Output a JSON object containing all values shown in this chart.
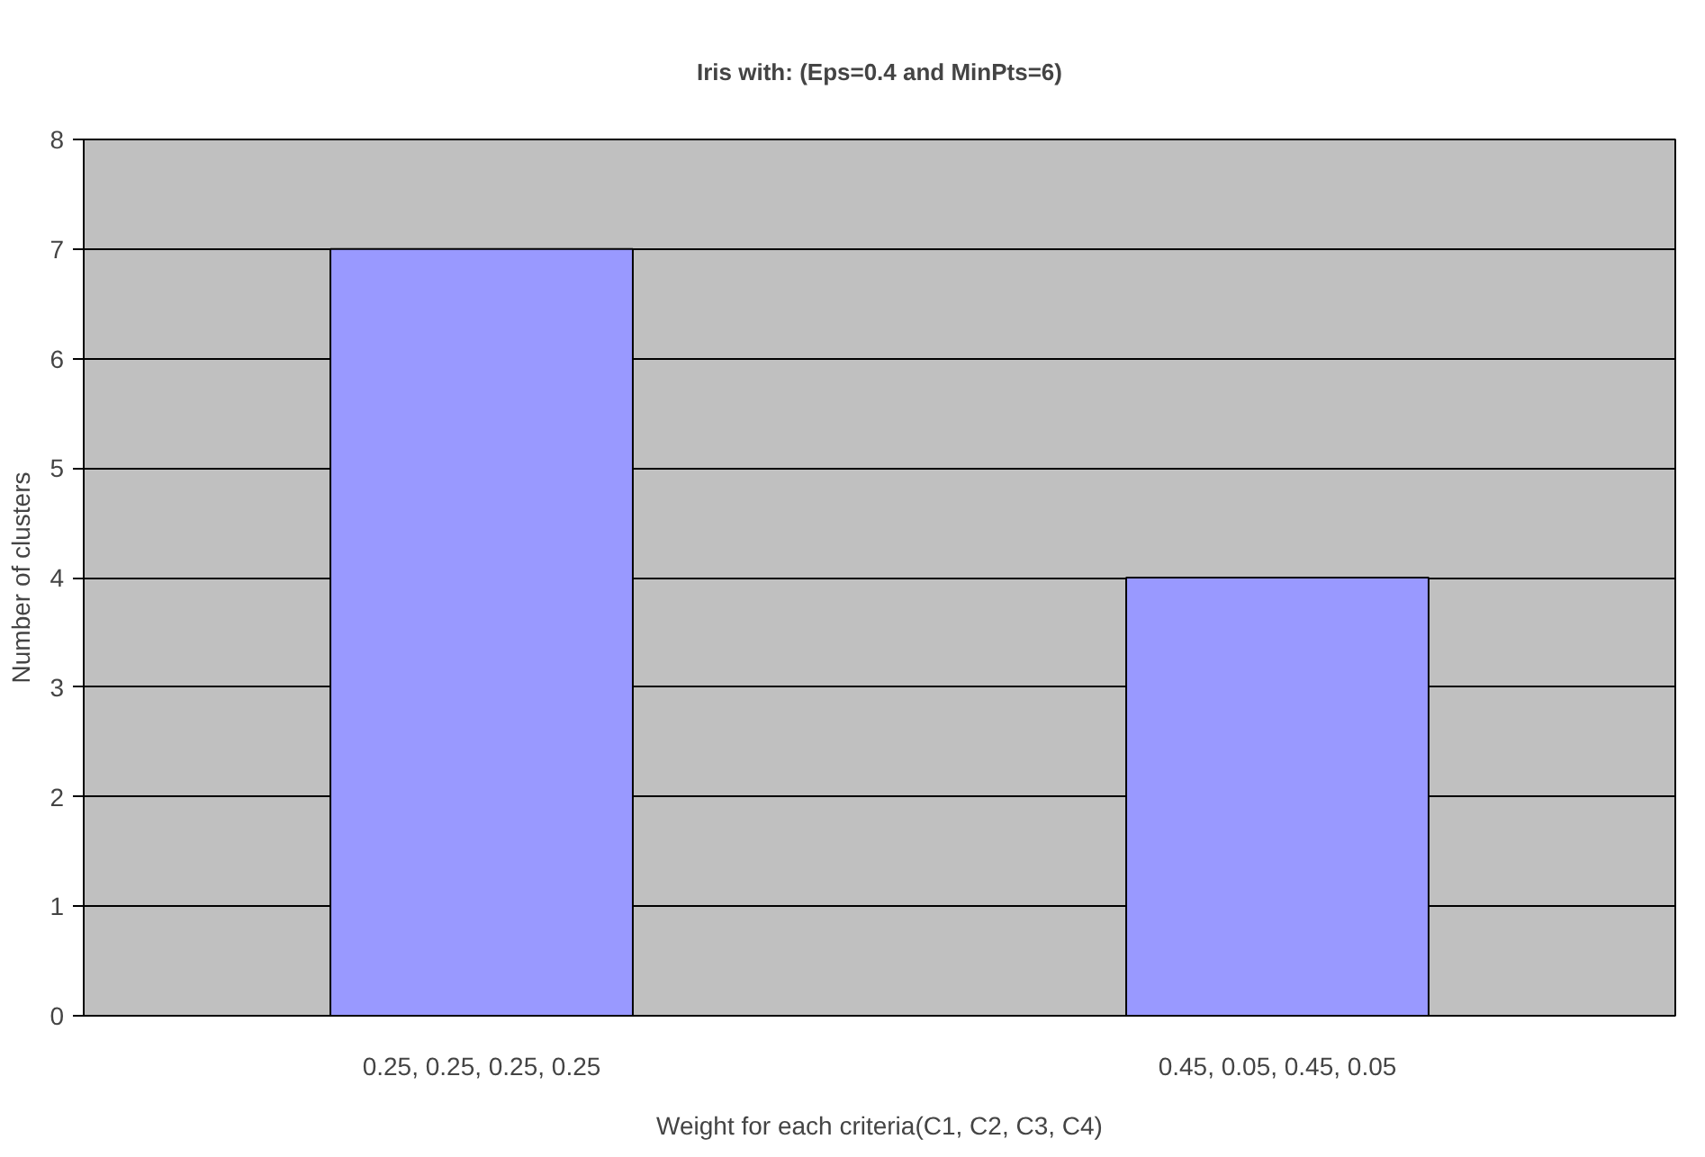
{
  "chart_data": {
    "type": "bar",
    "title": "Iris with: (Eps=0.4 and MinPts=6)",
    "xlabel": "Weight for each criteria(C1, C2, C3, C4)",
    "ylabel": "Number of clusters",
    "categories": [
      "0.25, 0.25, 0.25, 0.25",
      "0.45, 0.05, 0.45, 0.05"
    ],
    "values": [
      7,
      4
    ],
    "color": "#9999ff",
    "ylim": [
      0,
      8
    ],
    "yticks": [
      0,
      1,
      2,
      3,
      4,
      5,
      6,
      7,
      8
    ],
    "grid": "y"
  }
}
